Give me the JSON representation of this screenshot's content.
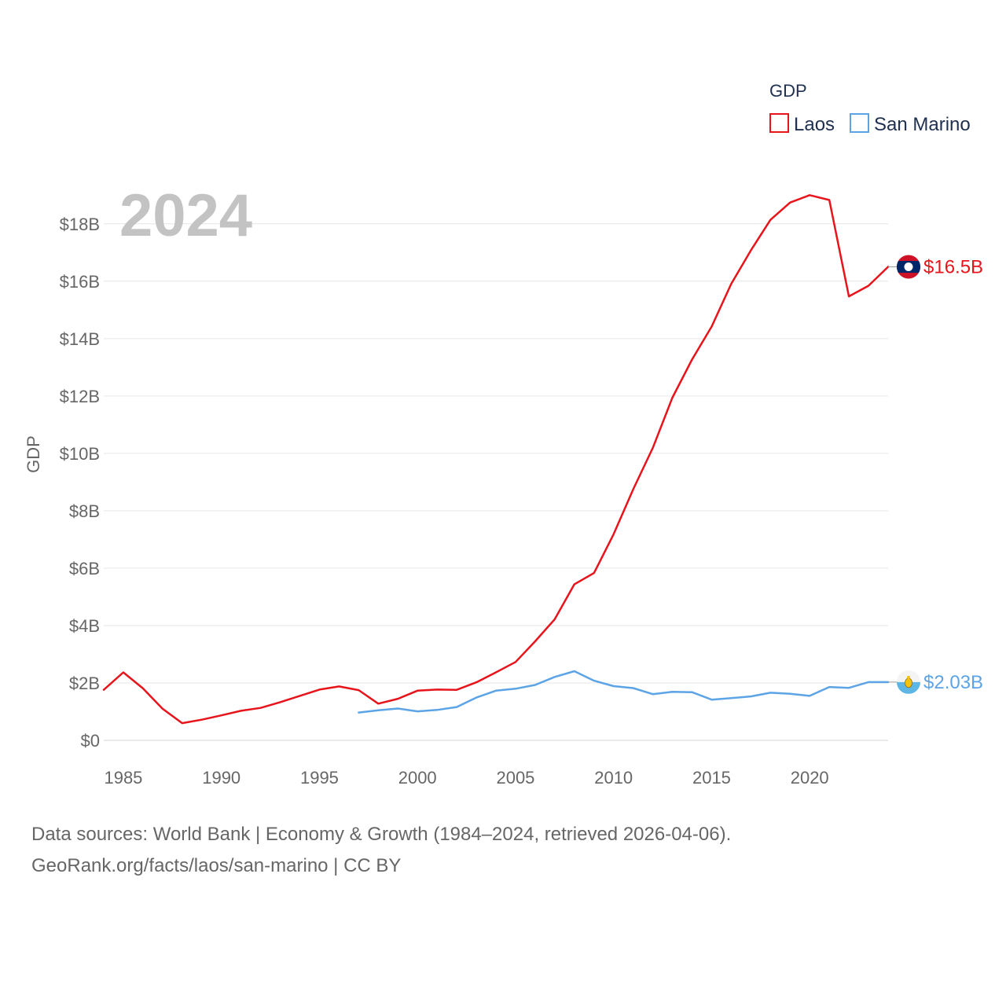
{
  "chart_data": {
    "type": "line",
    "title": "",
    "year_label": "2024",
    "xlabel": "",
    "ylabel": "GDP",
    "xlim": [
      1984,
      2024
    ],
    "ylim": [
      0,
      19.5
    ],
    "x_ticks": [
      1985,
      1990,
      1995,
      2000,
      2005,
      2010,
      2015,
      2020
    ],
    "x_tick_labels": [
      "1985",
      "1990",
      "1995",
      "2000",
      "2005",
      "2010",
      "2015",
      "2020"
    ],
    "y_ticks": [
      0,
      2,
      4,
      6,
      8,
      10,
      12,
      14,
      16,
      18
    ],
    "y_tick_labels": [
      "$0",
      "$2B",
      "$4B",
      "$6B",
      "$8B",
      "$10B",
      "$12B",
      "$14B",
      "$16B",
      "$18B"
    ],
    "grid": true,
    "legend": {
      "title": "GDP",
      "position": "top-right",
      "entries": [
        "Laos",
        "San Marino"
      ]
    },
    "series": [
      {
        "name": "Laos",
        "color": "#e8141c",
        "end_label": "$16.5B",
        "flag": "laos-flag-icon",
        "x": [
          1984,
          1985,
          1986,
          1987,
          1988,
          1989,
          1990,
          1991,
          1992,
          1993,
          1994,
          1995,
          1996,
          1997,
          1998,
          1999,
          2000,
          2001,
          2002,
          2003,
          2004,
          2005,
          2006,
          2007,
          2008,
          2009,
          2010,
          2011,
          2012,
          2013,
          2014,
          2015,
          2016,
          2017,
          2018,
          2019,
          2020,
          2021,
          2022,
          2023,
          2024
        ],
        "values": [
          1.76,
          2.37,
          1.81,
          1.1,
          0.6,
          0.72,
          0.87,
          1.03,
          1.13,
          1.33,
          1.55,
          1.77,
          1.88,
          1.75,
          1.28,
          1.45,
          1.73,
          1.77,
          1.76,
          2.02,
          2.37,
          2.73,
          3.45,
          4.22,
          5.44,
          5.83,
          7.18,
          8.75,
          10.19,
          11.94,
          13.27,
          14.42,
          15.91,
          17.07,
          18.14,
          18.74,
          19.0,
          18.83,
          15.47,
          15.84,
          16.5
        ]
      },
      {
        "name": "San Marino",
        "color": "#5ca4e6",
        "end_label": "$2.03B",
        "flag": "san-marino-flag-icon",
        "x": [
          1997,
          1998,
          1999,
          2000,
          2001,
          2002,
          2003,
          2004,
          2005,
          2006,
          2007,
          2008,
          2009,
          2010,
          2011,
          2012,
          2013,
          2014,
          2015,
          2016,
          2017,
          2018,
          2019,
          2020,
          2021,
          2022,
          2023,
          2024
        ],
        "values": [
          0.97,
          1.05,
          1.11,
          1.01,
          1.06,
          1.16,
          1.49,
          1.73,
          1.8,
          1.93,
          2.21,
          2.41,
          2.08,
          1.89,
          1.82,
          1.61,
          1.69,
          1.68,
          1.42,
          1.47,
          1.53,
          1.66,
          1.62,
          1.55,
          1.86,
          1.83,
          2.03,
          2.03
        ]
      }
    ],
    "footer_line1": "Data sources: World Bank | Economy & Growth (1984–2024, retrieved 2026-04-06).",
    "footer_line2": "GeoRank.org/facts/laos/san-marino | CC BY"
  }
}
